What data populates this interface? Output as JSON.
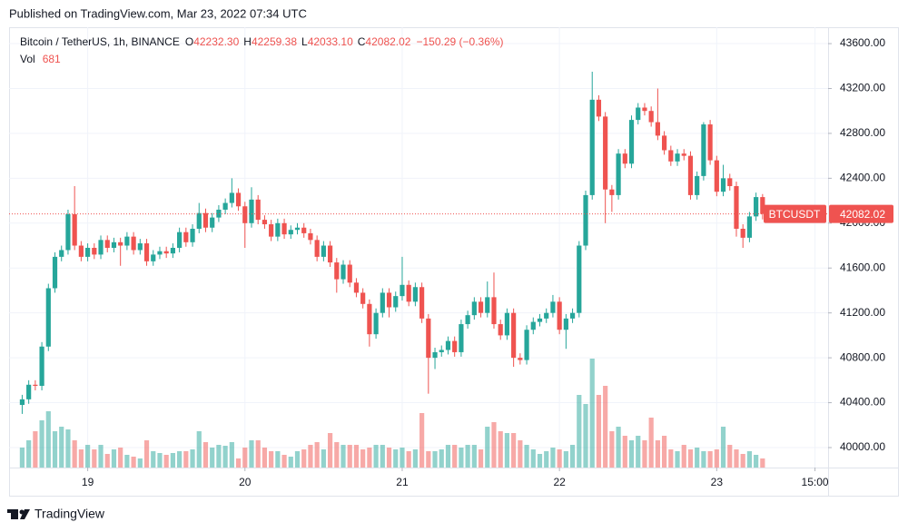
{
  "header": {
    "published": "Published on TradingView.com, Mar 23, 2022 07:34 UTC"
  },
  "footer": {
    "brand": "TradingView"
  },
  "chart_data": {
    "type": "candlestick",
    "legend": {
      "symbol": "Bitcoin / TetherUS, 1h, BINANCE",
      "items": [
        {
          "key": "O",
          "text": "42232.30"
        },
        {
          "key": "H",
          "text": "42259.38"
        },
        {
          "key": "L",
          "text": "42033.10"
        },
        {
          "key": "C",
          "text": "42082.02"
        }
      ],
      "change": "−150.29 (−0.36%)",
      "volume": {
        "key": "Vol",
        "text": "681"
      }
    },
    "price_tag": {
      "name": "BTCUSDT",
      "label": "42082.02"
    },
    "up_color": "#26a69a",
    "down_color": "#ef5350",
    "grid": true,
    "xlim": [
      "Mar 18 12:00",
      "Mar 23 17:00"
    ],
    "xticks": [
      {
        "value": "Mar 19 00:00",
        "label": "19"
      },
      {
        "value": "Mar 20 00:00",
        "label": "20"
      },
      {
        "value": "Mar 21 00:00",
        "label": "21"
      },
      {
        "value": "Mar 22 00:00",
        "label": "22"
      },
      {
        "value": "Mar 23 00:00",
        "label": "23"
      },
      {
        "value": "Mar 23 15:00",
        "label": "15:00"
      }
    ],
    "ylim": [
      39822,
      43746
    ],
    "yticks": [
      {
        "value": 40000,
        "label": "40000.00"
      },
      {
        "value": 40400,
        "label": "40400.00"
      },
      {
        "value": 40800,
        "label": "40800.00"
      },
      {
        "value": 41200,
        "label": "41200.00"
      },
      {
        "value": 41600,
        "label": "41600.00"
      },
      {
        "value": 42000,
        "label": "42000.00"
      },
      {
        "value": 42400,
        "label": "42400.00"
      },
      {
        "value": 42800,
        "label": "42800.00"
      },
      {
        "value": 43200,
        "label": "43200.00"
      },
      {
        "value": 43600,
        "label": "43600.00"
      }
    ],
    "x": [
      "Mar 18 14:00",
      "Mar 18 15:00",
      "Mar 18 16:00",
      "Mar 18 17:00",
      "Mar 18 18:00",
      "Mar 18 19:00",
      "Mar 18 20:00",
      "Mar 18 21:00",
      "Mar 18 22:00",
      "Mar 18 23:00",
      "Mar 19 00:00",
      "Mar 19 01:00",
      "Mar 19 02:00",
      "Mar 19 03:00",
      "Mar 19 04:00",
      "Mar 19 05:00",
      "Mar 19 06:00",
      "Mar 19 07:00",
      "Mar 19 08:00",
      "Mar 19 09:00",
      "Mar 19 10:00",
      "Mar 19 11:00",
      "Mar 19 12:00",
      "Mar 19 13:00",
      "Mar 19 14:00",
      "Mar 19 15:00",
      "Mar 19 16:00",
      "Mar 19 17:00",
      "Mar 19 18:00",
      "Mar 19 19:00",
      "Mar 19 20:00",
      "Mar 19 21:00",
      "Mar 19 22:00",
      "Mar 19 23:00",
      "Mar 20 00:00",
      "Mar 20 01:00",
      "Mar 20 02:00",
      "Mar 20 03:00",
      "Mar 20 04:00",
      "Mar 20 05:00",
      "Mar 20 06:00",
      "Mar 20 07:00",
      "Mar 20 08:00",
      "Mar 20 09:00",
      "Mar 20 10:00",
      "Mar 20 11:00",
      "Mar 20 12:00",
      "Mar 20 13:00",
      "Mar 20 14:00",
      "Mar 20 15:00",
      "Mar 20 16:00",
      "Mar 20 17:00",
      "Mar 20 18:00",
      "Mar 20 19:00",
      "Mar 20 20:00",
      "Mar 20 21:00",
      "Mar 20 22:00",
      "Mar 20 23:00",
      "Mar 21 00:00",
      "Mar 21 01:00",
      "Mar 21 02:00",
      "Mar 21 03:00",
      "Mar 21 04:00",
      "Mar 21 05:00",
      "Mar 21 06:00",
      "Mar 21 07:00",
      "Mar 21 08:00",
      "Mar 21 09:00",
      "Mar 21 10:00",
      "Mar 21 11:00",
      "Mar 21 12:00",
      "Mar 21 13:00",
      "Mar 21 14:00",
      "Mar 21 15:00",
      "Mar 21 16:00",
      "Mar 21 17:00",
      "Mar 21 18:00",
      "Mar 21 19:00",
      "Mar 21 20:00",
      "Mar 21 21:00",
      "Mar 21 22:00",
      "Mar 21 23:00",
      "Mar 22 00:00",
      "Mar 22 01:00",
      "Mar 22 02:00",
      "Mar 22 03:00",
      "Mar 22 04:00",
      "Mar 22 05:00",
      "Mar 22 06:00",
      "Mar 22 07:00",
      "Mar 22 08:00",
      "Mar 22 09:00",
      "Mar 22 10:00",
      "Mar 22 11:00",
      "Mar 22 12:00",
      "Mar 22 13:00",
      "Mar 22 14:00",
      "Mar 22 15:00",
      "Mar 22 16:00",
      "Mar 22 17:00",
      "Mar 22 18:00",
      "Mar 22 19:00",
      "Mar 22 20:00",
      "Mar 22 21:00",
      "Mar 22 22:00",
      "Mar 22 23:00",
      "Mar 23 00:00",
      "Mar 23 01:00",
      "Mar 23 02:00",
      "Mar 23 03:00",
      "Mar 23 04:00",
      "Mar 23 05:00",
      "Mar 23 06:00",
      "Mar 23 07:00"
    ],
    "open": [
      40380,
      40430,
      40560,
      40550,
      40900,
      41420,
      41700,
      41760,
      42080,
      41800,
      41700,
      41780,
      41720,
      41850,
      41780,
      41830,
      41800,
      41880,
      41760,
      41820,
      41660,
      41720,
      41750,
      41730,
      41780,
      41920,
      41830,
      41950,
      42090,
      41960,
      42050,
      42120,
      42180,
      42270,
      42150,
      42000,
      42210,
      42030,
      41990,
      41880,
      42000,
      41900,
      41940,
      41960,
      41910,
      41850,
      41700,
      41800,
      41650,
      41500,
      41630,
      41470,
      41380,
      41280,
      41010,
      41200,
      41380,
      41250,
      41350,
      41450,
      41300,
      41430,
      41150,
      40800,
      40850,
      40870,
      40950,
      40850,
      41100,
      41180,
      41300,
      41200,
      41340,
      41100,
      41000,
      41200,
      40800,
      40780,
      41050,
      41120,
      41150,
      41200,
      41300,
      41050,
      41150,
      41200,
      41800,
      42250,
      43100,
      42950,
      42300,
      42250,
      42620,
      42530,
      42920,
      43030,
      43000,
      42900,
      42780,
      42650,
      42550,
      42620,
      42600,
      42250,
      42420,
      42880,
      42560,
      42280,
      42400,
      42330,
      41950,
      41870,
      42060,
      42232.3
    ],
    "high": [
      40470,
      40600,
      40600,
      40940,
      41460,
      41740,
      41800,
      42120,
      42330,
      41840,
      41820,
      41820,
      41890,
      41890,
      41870,
      41870,
      41920,
      41920,
      41860,
      41860,
      41760,
      41790,
      41790,
      41820,
      41960,
      41960,
      41990,
      42180,
      42130,
      42090,
      42160,
      42220,
      42400,
      42310,
      42190,
      42320,
      42250,
      42070,
      42030,
      42040,
      42040,
      41980,
      42000,
      42000,
      41950,
      41890,
      41840,
      41840,
      41690,
      41670,
      41670,
      41510,
      41420,
      41320,
      41240,
      41420,
      41420,
      41390,
      41700,
      41490,
      41470,
      41470,
      41190,
      40890,
      40910,
      40990,
      40990,
      41140,
      41220,
      41340,
      41340,
      41480,
      41560,
      41140,
      41240,
      41240,
      40840,
      41090,
      41160,
      41190,
      41240,
      41360,
      41340,
      41190,
      41240,
      41840,
      42290,
      43350,
      43140,
      42990,
      42340,
      42660,
      42660,
      42960,
      43070,
      43070,
      43040,
      43200,
      42820,
      42690,
      42660,
      42660,
      42640,
      42460,
      42900,
      42920,
      42600,
      42520,
      42440,
      42370,
      41990,
      42100,
      42272,
      42259.38
    ],
    "low": [
      40300,
      40390,
      40510,
      40510,
      40860,
      41380,
      41660,
      41720,
      41760,
      41660,
      41660,
      41680,
      41680,
      41740,
      41740,
      41620,
      41760,
      41720,
      41720,
      41620,
      41620,
      41680,
      41690,
      41690,
      41740,
      41790,
      41790,
      41910,
      41920,
      41920,
      42010,
      42080,
      42140,
      42110,
      41780,
      41960,
      41990,
      41950,
      41840,
      41840,
      41860,
      41860,
      41900,
      41870,
      41810,
      41660,
      41660,
      41610,
      41380,
      41460,
      41430,
      41340,
      41240,
      40900,
      40970,
      41160,
      41160,
      41210,
      41310,
      41260,
      41260,
      41110,
      40480,
      40700,
      40810,
      40830,
      40810,
      40810,
      41060,
      41140,
      41160,
      41160,
      41060,
      40960,
      40960,
      40720,
      40740,
      40740,
      41010,
      41080,
      41110,
      41160,
      41010,
      40880,
      41110,
      41160,
      41760,
      42210,
      42910,
      42000,
      42100,
      42210,
      42490,
      42490,
      42880,
      42960,
      42860,
      42740,
      42610,
      42510,
      42510,
      42560,
      42210,
      42210,
      42380,
      42520,
      42240,
      42240,
      42290,
      41880,
      41780,
      41830,
      42020,
      42033.1
    ],
    "close": [
      40430,
      40560,
      40550,
      40900,
      41420,
      41700,
      41760,
      42080,
      41800,
      41700,
      41780,
      41720,
      41850,
      41780,
      41830,
      41800,
      41880,
      41760,
      41820,
      41660,
      41720,
      41750,
      41730,
      41780,
      41920,
      41830,
      41950,
      42090,
      41960,
      42050,
      42120,
      42180,
      42270,
      42150,
      42000,
      42210,
      42030,
      41990,
      41880,
      42000,
      41900,
      41940,
      41960,
      41910,
      41850,
      41700,
      41800,
      41650,
      41500,
      41630,
      41470,
      41380,
      41280,
      41010,
      41200,
      41380,
      41250,
      41350,
      41450,
      41300,
      41430,
      41150,
      40800,
      40850,
      40870,
      40950,
      40850,
      41100,
      41180,
      41300,
      41200,
      41340,
      41100,
      41000,
      41200,
      40800,
      40780,
      41050,
      41120,
      41150,
      41200,
      41300,
      41050,
      41150,
      41200,
      41800,
      42250,
      43100,
      42950,
      42300,
      42250,
      42620,
      42530,
      42920,
      43030,
      43000,
      42900,
      42780,
      42650,
      42550,
      42620,
      42600,
      42250,
      42420,
      42880,
      42560,
      42280,
      42400,
      42330,
      41950,
      41870,
      42060,
      42232.3,
      42082.02
    ],
    "volume": [
      1496,
      2040,
      2720,
      3536,
      4216,
      2720,
      3060,
      2856,
      2040,
      1360,
      1700,
      1360,
      1700,
      1020,
      1360,
      1496,
      952,
      816,
      680,
      2040,
      1224,
      1088,
      952,
      1088,
      1224,
      1224,
      1360,
      2720,
      1904,
      1496,
      1700,
      1632,
      1904,
      680,
      1496,
      2040,
      2040,
      1496,
      1224,
      1224,
      952,
      816,
      1224,
      1360,
      1700,
      1904,
      1360,
      2584,
      1904,
      1700,
      1700,
      1700,
      1360,
      1496,
      1700,
      1700,
      1496,
      1360,
      1496,
      1224,
      1360,
      4080,
      1224,
      1224,
      1360,
      1700,
      1700,
      1496,
      1700,
      1700,
      1360,
      3060,
      3400,
      2720,
      2584,
      2584,
      2040,
      1700,
      1360,
      1020,
      1224,
      1496,
      1360,
      1224,
      1700,
      5440,
      4760,
      8160,
      5440,
      6120,
      2720,
      3060,
      2380,
      2040,
      2380,
      2040,
      3740,
      2040,
      2380,
      1360,
      1224,
      1700,
      1360,
      1496,
      1224,
      1224,
      1360,
      3060,
      1700,
      1360,
      1020,
      1224,
      952,
      681
    ]
  }
}
